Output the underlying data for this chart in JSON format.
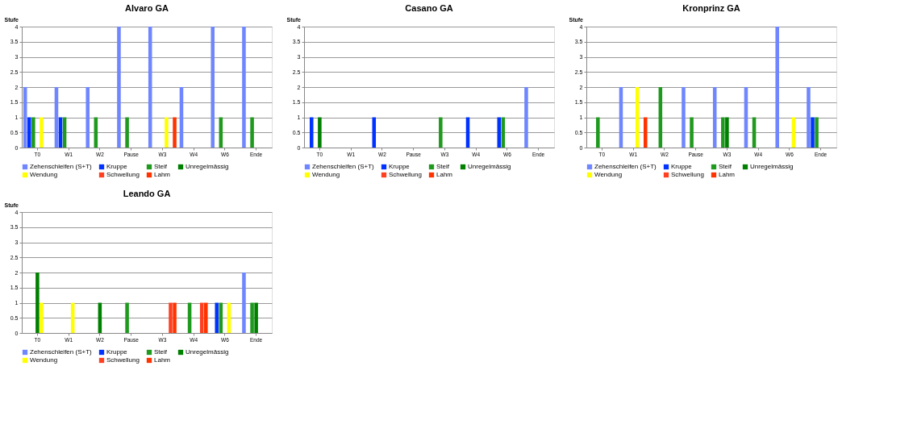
{
  "chart_data": [
    {
      "type": "bar",
      "title": "Alvaro  GA",
      "ylabel": "Stufe",
      "categories": [
        "T0",
        "W1",
        "W2",
        "Pause",
        "W3",
        "W4",
        "W6",
        "Ende"
      ],
      "ylim": [
        0,
        4
      ],
      "yticks": [
        0,
        0.5,
        1,
        1.5,
        2,
        2.5,
        3,
        3.5,
        4
      ],
      "grid": "y",
      "legend": "bottom",
      "series": [
        {
          "name": "Zehenschleifen (S+T)",
          "color": "#6f86ff",
          "values": [
            2,
            2,
            2,
            4,
            4,
            2,
            4,
            4
          ]
        },
        {
          "name": "Kruppe",
          "color": "#0033ff",
          "values": [
            1,
            1,
            null,
            null,
            null,
            null,
            null,
            null
          ]
        },
        {
          "name": "Steif",
          "color": "#1f9a1f",
          "values": [
            1,
            1,
            1,
            1,
            null,
            null,
            1,
            1
          ]
        },
        {
          "name": "Unregelmässig",
          "color": "#008000",
          "values": [
            null,
            null,
            null,
            null,
            null,
            null,
            null,
            null
          ]
        },
        {
          "name": "Wendung",
          "color": "#ffff00",
          "values": [
            1,
            null,
            null,
            null,
            1,
            null,
            null,
            null
          ]
        },
        {
          "name": "Schwellung",
          "color": "#ff4020",
          "values": [
            null,
            null,
            null,
            null,
            null,
            null,
            null,
            null
          ]
        },
        {
          "name": "Lahm",
          "color": "#ff3300",
          "values": [
            null,
            null,
            null,
            null,
            1,
            null,
            null,
            null
          ]
        }
      ]
    },
    {
      "type": "bar",
      "title": "Casano GA",
      "ylabel": "Stufe",
      "categories": [
        "T0",
        "W1",
        "W2",
        "Pause",
        "W3",
        "W4",
        "W6",
        "Ende"
      ],
      "ylim": [
        0,
        4
      ],
      "yticks": [
        0,
        0.5,
        1,
        1.5,
        2,
        2.5,
        3,
        3.5,
        4
      ],
      "grid": "y",
      "legend": "bottom",
      "series": [
        {
          "name": "Zehenschleifen (S+T)",
          "color": "#6f86ff",
          "values": [
            null,
            null,
            null,
            null,
            null,
            null,
            null,
            2
          ]
        },
        {
          "name": "Kruppe",
          "color": "#0033ff",
          "values": [
            1,
            null,
            1,
            null,
            null,
            1,
            1,
            null
          ]
        },
        {
          "name": "Steif",
          "color": "#1f9a1f",
          "values": [
            null,
            null,
            null,
            null,
            1,
            null,
            1,
            null
          ]
        },
        {
          "name": "Unregelmässig",
          "color": "#008000",
          "values": [
            1,
            null,
            null,
            null,
            null,
            null,
            null,
            null
          ]
        },
        {
          "name": "Wendung",
          "color": "#ffff00",
          "values": [
            null,
            null,
            null,
            null,
            null,
            null,
            null,
            null
          ]
        },
        {
          "name": "Schwellung",
          "color": "#ff4020",
          "values": [
            null,
            null,
            null,
            null,
            null,
            null,
            null,
            null
          ]
        },
        {
          "name": "Lahm",
          "color": "#ff3300",
          "values": [
            null,
            null,
            null,
            null,
            null,
            null,
            null,
            null
          ]
        }
      ]
    },
    {
      "type": "bar",
      "title": "Kronprinz GA",
      "ylabel": "Stufe",
      "categories": [
        "T0",
        "W1",
        "W2",
        "Pause",
        "W3",
        "W4",
        "W6",
        "Ende"
      ],
      "ylim": [
        0,
        4
      ],
      "yticks": [
        0,
        0.5,
        1,
        1.5,
        2,
        2.5,
        3,
        3.5,
        4
      ],
      "grid": "y",
      "legend": "bottom",
      "series": [
        {
          "name": "Zehenschleifen (S+T)",
          "color": "#6f86ff",
          "values": [
            null,
            2,
            null,
            2,
            2,
            2,
            4,
            2
          ]
        },
        {
          "name": "Kruppe",
          "color": "#0033ff",
          "values": [
            null,
            null,
            null,
            null,
            null,
            null,
            null,
            1
          ]
        },
        {
          "name": "Steif",
          "color": "#1f9a1f",
          "values": [
            1,
            null,
            2,
            1,
            1,
            1,
            null,
            1
          ]
        },
        {
          "name": "Unregelmässig",
          "color": "#008000",
          "values": [
            null,
            null,
            null,
            null,
            1,
            null,
            null,
            null
          ]
        },
        {
          "name": "Wendung",
          "color": "#ffff00",
          "values": [
            null,
            2,
            null,
            null,
            null,
            null,
            1,
            null
          ]
        },
        {
          "name": "Schwellung",
          "color": "#ff4020",
          "values": [
            null,
            null,
            null,
            null,
            null,
            null,
            null,
            null
          ]
        },
        {
          "name": "Lahm",
          "color": "#ff3300",
          "values": [
            null,
            1,
            null,
            null,
            null,
            null,
            null,
            null
          ]
        }
      ]
    },
    {
      "type": "bar",
      "title": "Leando GA",
      "ylabel": "Stufe",
      "categories": [
        "T0",
        "W1",
        "W2",
        "Pause",
        "W3",
        "W4",
        "W6",
        "Ende"
      ],
      "ylim": [
        0,
        4
      ],
      "yticks": [
        0,
        0.5,
        1,
        1.5,
        2,
        2.5,
        3,
        3.5,
        4
      ],
      "grid": "y",
      "legend": "bottom",
      "series": [
        {
          "name": "Zehenschleifen (S+T)",
          "color": "#6f86ff",
          "values": [
            null,
            null,
            null,
            null,
            null,
            null,
            null,
            2
          ]
        },
        {
          "name": "Kruppe",
          "color": "#0033ff",
          "values": [
            null,
            null,
            null,
            null,
            null,
            null,
            1,
            null
          ]
        },
        {
          "name": "Steif",
          "color": "#1f9a1f",
          "values": [
            null,
            null,
            null,
            1,
            null,
            1,
            1,
            1
          ]
        },
        {
          "name": "Unregelmässig",
          "color": "#008000",
          "values": [
            2,
            null,
            1,
            null,
            null,
            null,
            null,
            1
          ]
        },
        {
          "name": "Wendung",
          "color": "#ffff00",
          "values": [
            1,
            1,
            null,
            null,
            null,
            null,
            1,
            null
          ]
        },
        {
          "name": "Schwellung",
          "color": "#ff4020",
          "values": [
            null,
            null,
            null,
            null,
            1,
            1,
            null,
            null
          ]
        },
        {
          "name": "Lahm",
          "color": "#ff3300",
          "values": [
            null,
            null,
            null,
            null,
            1,
            1,
            null,
            null
          ]
        }
      ]
    }
  ]
}
